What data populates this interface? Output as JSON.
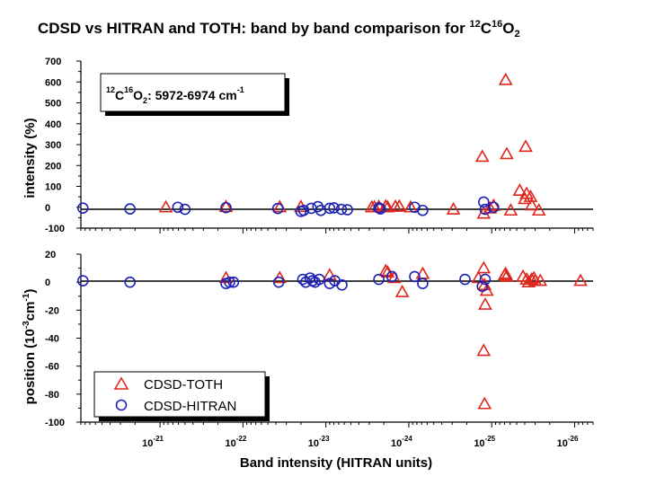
{
  "title": {
    "prefix": "CDSD vs HITRAN and TOTH: band by band comparison for ",
    "sup1": "12",
    "mid": "C",
    "sup2": "16",
    "tail": "O",
    "sub": "2"
  },
  "colors": {
    "toth": "#e0261c",
    "hitran": "#1c21b8",
    "axis": "#000000"
  },
  "chart_data": [
    {
      "type": "scatter",
      "panel": "top",
      "ylabel": "intensity (%)",
      "ylim": [
        -100,
        700
      ],
      "yticks": [
        "700",
        "600",
        "500",
        "400",
        "300",
        "200",
        "100",
        "0",
        "-100"
      ],
      "xscale": "log",
      "xlim": [
        6e-27,
        9e-21
      ],
      "zero_line": true,
      "annotation": {
        "pre": "12",
        "c": "C",
        "sup16": "16",
        "o": "O",
        "sub2": "2",
        "range": ": 5972-6974 cm",
        "unit_sup": "-1"
      },
      "series": [
        {
          "name": "CDSD-TOTH",
          "marker": "triangle",
          "points": [
            {
              "x": 8.5e-22,
              "y": 0
            },
            {
              "x": 1.6e-22,
              "y": 2
            },
            {
              "x": 3.6e-23,
              "y": 1
            },
            {
              "x": 2e-23,
              "y": 2
            },
            {
              "x": 1.8e-24,
              "y": 0
            },
            {
              "x": 2.6e-24,
              "y": 1
            },
            {
              "x": 2.8e-24,
              "y": 0
            },
            {
              "x": 2.3e-24,
              "y": 3
            },
            {
              "x": 1.9e-24,
              "y": 5
            },
            {
              "x": 1.45e-24,
              "y": 3
            },
            {
              "x": 1.3e-24,
              "y": 4
            },
            {
              "x": 9.5e-25,
              "y": 0
            },
            {
              "x": 2.9e-25,
              "y": -10
            },
            {
              "x": 1.3e-25,
              "y": 242
            },
            {
              "x": 1.25e-25,
              "y": -30
            },
            {
              "x": 1.05e-25,
              "y": -5
            },
            {
              "x": 9.5e-26,
              "y": 8
            },
            {
              "x": 6.8e-26,
              "y": 610
            },
            {
              "x": 6.6e-26,
              "y": 255
            },
            {
              "x": 5.9e-26,
              "y": -15
            },
            {
              "x": 4.6e-26,
              "y": 80
            },
            {
              "x": 3.9e-26,
              "y": 290
            },
            {
              "x": 4e-26,
              "y": 40
            },
            {
              "x": 3.8e-26,
              "y": 65
            },
            {
              "x": 3.4e-26,
              "y": 50
            },
            {
              "x": 3.3e-26,
              "y": 10
            },
            {
              "x": 2.7e-26,
              "y": -15
            }
          ]
        },
        {
          "name": "CDSD-HITRAN",
          "marker": "circle",
          "points": [
            {
              "x": 8.5e-21,
              "y": -4
            },
            {
              "x": 2.3e-21,
              "y": -8
            },
            {
              "x": 6.1e-22,
              "y": 0
            },
            {
              "x": 5e-22,
              "y": -10
            },
            {
              "x": 1.6e-22,
              "y": -2
            },
            {
              "x": 3.8e-23,
              "y": -6
            },
            {
              "x": 2e-23,
              "y": -20
            },
            {
              "x": 1.85e-23,
              "y": -15
            },
            {
              "x": 1.5e-23,
              "y": -5
            },
            {
              "x": 1.25e-23,
              "y": 3
            },
            {
              "x": 1.15e-23,
              "y": -15
            },
            {
              "x": 9e-24,
              "y": -5
            },
            {
              "x": 8e-24,
              "y": -3
            },
            {
              "x": 6.5e-24,
              "y": -10
            },
            {
              "x": 5.5e-24,
              "y": -12
            },
            {
              "x": 2.3e-24,
              "y": -3
            },
            {
              "x": 2.2e-24,
              "y": -8
            },
            {
              "x": 8.5e-25,
              "y": 0
            },
            {
              "x": 6.8e-25,
              "y": -15
            },
            {
              "x": 1.25e-25,
              "y": 25
            },
            {
              "x": 1.2e-25,
              "y": -10
            },
            {
              "x": 9.5e-26,
              "y": 0
            }
          ]
        }
      ]
    },
    {
      "type": "scatter",
      "panel": "bottom",
      "ylabel_pre": "position (10",
      "ylabel_sup1": "-3",
      "ylabel_mid": "cm",
      "ylabel_sup2": "-1",
      "ylabel_post": ")",
      "ylim": [
        -100,
        20
      ],
      "yticks": [
        "20",
        "0",
        "-20",
        "-40",
        "-60",
        "-80",
        "-100"
      ],
      "xlabel": "Band intensity (HITRAN units)",
      "xscale": "log",
      "xlim": [
        6e-27,
        9e-21
      ],
      "xticks": [
        {
          "base": "10",
          "exp": "-21",
          "value": 1e-21
        },
        {
          "base": "10",
          "exp": "-22",
          "value": 1e-22
        },
        {
          "base": "10",
          "exp": "-23",
          "value": 1e-23
        },
        {
          "base": "10",
          "exp": "-24",
          "value": 1e-24
        },
        {
          "base": "10",
          "exp": "-25",
          "value": 1e-25
        },
        {
          "base": "10",
          "exp": "-26",
          "value": 1e-26
        }
      ],
      "zero_line": true,
      "legend": {
        "placement": "bottom-left",
        "entries": [
          "CDSD-TOTH",
          "CDSD-HITRAN"
        ]
      },
      "series": [
        {
          "name": "CDSD-TOTH",
          "marker": "triangle",
          "points": [
            {
              "x": 1.6e-22,
              "y": 3
            },
            {
              "x": 3.6e-23,
              "y": 3
            },
            {
              "x": 1.8e-24,
              "y": 7
            },
            {
              "x": 1.9e-24,
              "y": 8
            },
            {
              "x": 1.5e-24,
              "y": 3
            },
            {
              "x": 9e-24,
              "y": 5
            },
            {
              "x": 1.2e-24,
              "y": -7
            },
            {
              "x": 6.8e-25,
              "y": 6
            },
            {
              "x": 1.45e-25,
              "y": 3
            },
            {
              "x": 1.25e-25,
              "y": 10
            },
            {
              "x": 1.22e-25,
              "y": -2
            },
            {
              "x": 1.15e-25,
              "y": -6
            },
            {
              "x": 1.2e-25,
              "y": -16
            },
            {
              "x": 1.25e-25,
              "y": -49
            },
            {
              "x": 1.22e-25,
              "y": -87
            },
            {
              "x": 7e-26,
              "y": 5
            },
            {
              "x": 6.6e-26,
              "y": 4
            },
            {
              "x": 6.8e-26,
              "y": 6
            },
            {
              "x": 4.2e-26,
              "y": 4
            },
            {
              "x": 3.8e-26,
              "y": 2
            },
            {
              "x": 3.6e-26,
              "y": 0
            },
            {
              "x": 3.3e-26,
              "y": 2
            },
            {
              "x": 3.1e-26,
              "y": 3
            },
            {
              "x": 3e-26,
              "y": 1
            },
            {
              "x": 2.6e-26,
              "y": 1
            },
            {
              "x": 8.5e-27,
              "y": 1
            }
          ]
        },
        {
          "name": "CDSD-HITRAN",
          "marker": "circle",
          "points": [
            {
              "x": 8.5e-21,
              "y": 1
            },
            {
              "x": 2.3e-21,
              "y": 0
            },
            {
              "x": 1.6e-22,
              "y": -1
            },
            {
              "x": 1.45e-22,
              "y": 0
            },
            {
              "x": 1.3e-22,
              "y": 0
            },
            {
              "x": 3.7e-23,
              "y": 0
            },
            {
              "x": 1.9e-23,
              "y": 2
            },
            {
              "x": 1.75e-23,
              "y": 0
            },
            {
              "x": 1.55e-23,
              "y": 3
            },
            {
              "x": 1.45e-23,
              "y": 1
            },
            {
              "x": 1.35e-23,
              "y": 0
            },
            {
              "x": 1.2e-23,
              "y": 2
            },
            {
              "x": 9e-24,
              "y": -1
            },
            {
              "x": 7.8e-24,
              "y": 1
            },
            {
              "x": 6.4e-24,
              "y": -2
            },
            {
              "x": 2.3e-24,
              "y": 2
            },
            {
              "x": 1.6e-24,
              "y": 4
            },
            {
              "x": 8.5e-25,
              "y": 4
            },
            {
              "x": 6.8e-25,
              "y": -1
            },
            {
              "x": 2.1e-25,
              "y": 2
            },
            {
              "x": 1.3e-25,
              "y": -3
            },
            {
              "x": 1.2e-25,
              "y": 2
            }
          ]
        }
      ]
    }
  ]
}
